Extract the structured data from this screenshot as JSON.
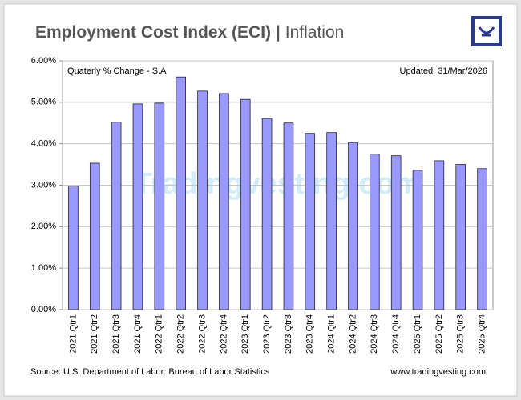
{
  "chart_data": {
    "type": "bar",
    "title": "Employment Cost Index (ECI) |",
    "subtitle": "Inflation",
    "annotations": [
      "Quaterly % Change - S.A",
      "Updated: 31/Mar/2026"
    ],
    "source": "Source: U.S. Department of Labor: Bureau of Labor Statistics",
    "website": "www.tradingvesting.com",
    "watermark": "Tradingvesting.com",
    "categories": [
      "2021 Qtr1",
      "2021 Qtr2",
      "2021 Qtr3",
      "2021 Qtr4",
      "2022 Qtr1",
      "2022 Qtr2",
      "2022 Qtr3",
      "2022 Qtr4",
      "2023 Qtr1",
      "2023 Qtr2",
      "2023 Qtr3",
      "2023 Qtr4",
      "2024 Qtr1",
      "2024 Qtr2",
      "2024 Qtr3",
      "2024 Qtr4",
      "2025 Qtr1",
      "2025 Qtr2",
      "2025 Qtr3",
      "2025 Qtr4"
    ],
    "values": [
      2.98,
      3.53,
      4.52,
      4.96,
      4.98,
      5.61,
      5.27,
      5.21,
      5.07,
      4.61,
      4.5,
      4.25,
      4.27,
      4.03,
      3.75,
      3.71,
      3.36,
      3.59,
      3.5,
      3.4
    ],
    "color": "#9999ff",
    "ylim": [
      0,
      6
    ],
    "yticks": [
      {
        "value": 0,
        "label": "0.00%"
      },
      {
        "value": 1,
        "label": "1.00%"
      },
      {
        "value": 2,
        "label": "2.00%"
      },
      {
        "value": 3,
        "label": "3.00%"
      },
      {
        "value": 4,
        "label": "4.00%"
      },
      {
        "value": 5,
        "label": "5.00%"
      },
      {
        "value": 6,
        "label": "6.00%"
      }
    ],
    "grid": true
  }
}
